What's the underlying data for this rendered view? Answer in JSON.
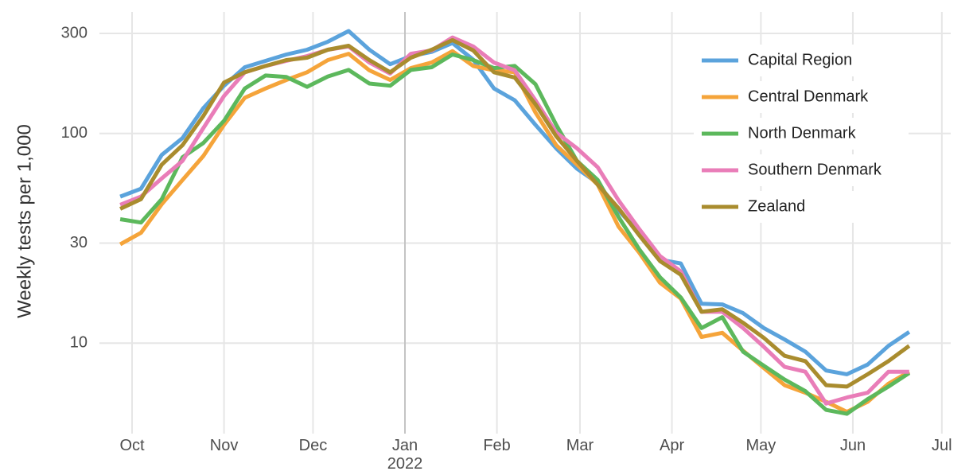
{
  "chart_data": {
    "type": "line",
    "y_label": "Weekly tests per 1,000",
    "x": [
      "2021-09-27",
      "2021-10-04",
      "2021-10-11",
      "2021-10-18",
      "2021-10-25",
      "2021-11-01",
      "2021-11-08",
      "2021-11-15",
      "2021-11-22",
      "2021-11-29",
      "2021-12-06",
      "2021-12-13",
      "2021-12-20",
      "2021-12-27",
      "2022-01-03",
      "2022-01-10",
      "2022-01-17",
      "2022-01-24",
      "2022-01-31",
      "2022-02-07",
      "2022-02-14",
      "2022-02-21",
      "2022-02-28",
      "2022-03-07",
      "2022-03-14",
      "2022-03-21",
      "2022-03-28",
      "2022-04-04",
      "2022-04-11",
      "2022-04-18",
      "2022-04-25",
      "2022-05-02",
      "2022-05-09",
      "2022-05-16",
      "2022-05-23",
      "2022-05-30",
      "2022-06-06",
      "2022-06-13",
      "2022-06-20"
    ],
    "series": [
      {
        "name": "Capital Region",
        "color": "#5ba3dc",
        "values": [
          50,
          54.5,
          79,
          95,
          132,
          169,
          207,
          222,
          238,
          251,
          274,
          308,
          251,
          214,
          234,
          245,
          270,
          225,
          164,
          144,
          110,
          85,
          68,
          58,
          43,
          33.6,
          25,
          24,
          15.4,
          15.3,
          13.9,
          11.8,
          10.4,
          9.1,
          7.4,
          7.1,
          7.9,
          9.7,
          11.3
        ]
      },
      {
        "name": "Central Denmark",
        "color": "#f5a43a",
        "values": [
          29.6,
          33.6,
          46,
          60,
          78,
          110,
          148,
          164,
          180,
          196,
          224,
          240,
          200,
          180,
          205,
          218,
          247,
          210,
          200,
          196,
          126,
          88,
          71,
          57,
          36,
          27,
          19.4,
          16.3,
          10.7,
          11.2,
          9.2,
          7.6,
          6.3,
          5.8,
          5.25,
          4.7,
          5.25,
          6.4,
          7.3
        ]
      },
      {
        "name": "North Denmark",
        "color": "#5cb85c",
        "values": [
          39,
          37.6,
          48.6,
          77,
          90,
          115,
          164,
          189,
          186,
          167,
          187,
          201,
          173,
          169,
          201,
          207,
          238,
          224,
          205,
          210,
          172,
          110,
          74,
          60,
          40,
          28,
          20.6,
          16.5,
          11.8,
          13.3,
          9.1,
          7.8,
          6.7,
          5.9,
          4.8,
          4.6,
          5.4,
          6.2,
          7.2
        ]
      },
      {
        "name": "Southern Denmark",
        "color": "#e97db8",
        "values": [
          45.7,
          50,
          61,
          74,
          106,
          151,
          196,
          210,
          222,
          234,
          251,
          260,
          218,
          193,
          240,
          249,
          287,
          260,
          218,
          200,
          144,
          101,
          85,
          69,
          48,
          35,
          26,
          22,
          14.1,
          14.1,
          11.8,
          9.6,
          7.7,
          7.3,
          5.15,
          5.5,
          5.8,
          7.3,
          7.3
        ]
      },
      {
        "name": "Zealand",
        "color": "#a98c2e",
        "values": [
          43.7,
          48.6,
          71,
          88,
          121,
          175,
          196,
          210,
          224,
          230,
          251,
          262,
          224,
          196,
          230,
          251,
          279,
          249,
          196,
          185,
          138,
          97,
          74,
          57,
          44,
          32.7,
          24.6,
          21.2,
          14.1,
          14.5,
          12.5,
          10.6,
          8.7,
          8.2,
          6.3,
          6.2,
          7.1,
          8.2,
          9.7
        ]
      }
    ],
    "ylim": [
      3.7,
      380
    ],
    "log_y": true,
    "yticks": [
      10,
      30,
      100,
      300
    ],
    "xlim": [
      "2021-09-20",
      "2022-07-04"
    ],
    "xticks": [
      {
        "value": "2021-10-01",
        "label": "Oct"
      },
      {
        "value": "2021-11-01",
        "label": "Nov"
      },
      {
        "value": "2021-12-01",
        "label": "Dec"
      },
      {
        "value": "2022-01-01",
        "label": "Jan\n2022"
      },
      {
        "value": "2022-02-01",
        "label": "Feb"
      },
      {
        "value": "2022-03-01",
        "label": "Mar"
      },
      {
        "value": "2022-04-01",
        "label": "Apr"
      },
      {
        "value": "2022-05-01",
        "label": "May"
      },
      {
        "value": "2022-06-01",
        "label": "Jun"
      },
      {
        "value": "2022-07-01",
        "label": "Jul"
      }
    ],
    "vline": "2022-01-01",
    "grid": true,
    "legend": "top-right"
  }
}
